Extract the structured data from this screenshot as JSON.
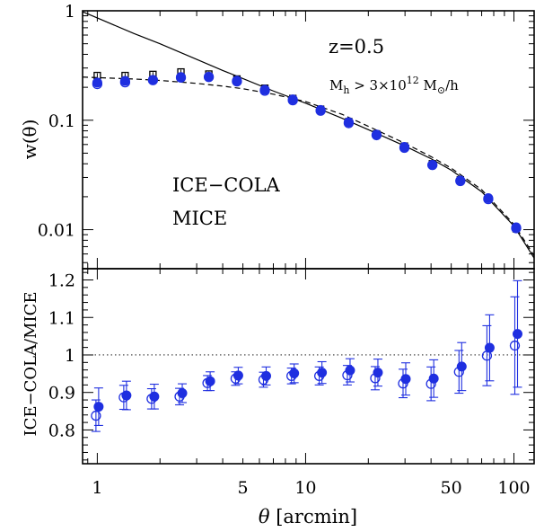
{
  "chart_data": [
    {
      "type": "scatter",
      "panel": "top",
      "xscale": "log",
      "yscale": "log",
      "xlim": [
        0.85,
        125
      ],
      "ylim": [
        0.0044,
        1.0
      ],
      "ylabel": "w(θ)",
      "xlabel": "",
      "yticks": [
        {
          "value": 1,
          "label": "1"
        },
        {
          "value": 0.1,
          "label": "0.1"
        },
        {
          "value": 0.01,
          "label": "0.01"
        }
      ],
      "annotations": {
        "redshift": "z=0.5",
        "mass_cut_prefix": "M",
        "mass_cut_sub": "h",
        "mass_cut_mid": " > 3×10",
        "mass_cut_exp": "12",
        "mass_cut_unit": " M",
        "mass_cut_sun": "⊙",
        "mass_cut_tail": "/h"
      },
      "legend": [
        {
          "label": "ICE−COLA",
          "color": "#1f2fe0"
        },
        {
          "label": "MICE",
          "color": "#000000"
        }
      ],
      "x": [
        1.0,
        1.36,
        1.85,
        2.52,
        3.43,
        4.68,
        6.37,
        8.68,
        11.8,
        16.1,
        21.9,
        29.8,
        40.6,
        55.3,
        75.3,
        102.5
      ],
      "series": [
        {
          "name": "MICE",
          "marker": "open-square",
          "color": "#000000",
          "values": [
            0.256,
            0.256,
            0.262,
            0.276,
            0.264,
            0.238,
            0.196,
            0.158,
            0.126,
            0.097,
            0.075,
            0.058,
            0.04,
            0.0285,
            0.0192,
            0.0102
          ]
        },
        {
          "name": "ICE−COLA",
          "marker": "open-circle",
          "color": "#1f2fe0",
          "values": [
            0.214,
            0.222,
            0.232,
            0.245,
            0.248,
            0.226,
            0.186,
            0.152,
            0.122,
            0.094,
            0.073,
            0.056,
            0.039,
            0.0278,
            0.019,
            0.0103
          ]
        },
        {
          "name": "",
          "marker": "filled-circle",
          "color": "#1f2fe0",
          "values": [
            0.221,
            0.229,
            0.234,
            0.248,
            0.25,
            0.23,
            0.19,
            0.155,
            0.124,
            0.096,
            0.074,
            0.057,
            0.039,
            0.0281,
            0.0194,
            0.0105
          ]
        }
      ],
      "curves": [
        {
          "style": "solid",
          "color": "#000000",
          "x": [
            0.85,
            1.0,
            1.5,
            2.0,
            3.0,
            4.0,
            5.0,
            7.0,
            10.0,
            15.0,
            20.0,
            30.0,
            40.0,
            50.0,
            70.0,
            100.0,
            125.0
          ],
          "y": [
            0.98,
            0.86,
            0.62,
            0.5,
            0.36,
            0.285,
            0.24,
            0.185,
            0.143,
            0.104,
            0.082,
            0.058,
            0.0445,
            0.035,
            0.0222,
            0.0108,
            0.0055
          ]
        },
        {
          "style": "dashed",
          "color": "#000000",
          "x": [
            0.85,
            1.0,
            1.5,
            2.0,
            3.0,
            4.0,
            5.0,
            7.0,
            10.0,
            15.0,
            20.0,
            30.0,
            40.0,
            50.0,
            70.0,
            100.0,
            125.0
          ],
          "y": [
            0.248,
            0.245,
            0.238,
            0.231,
            0.217,
            0.205,
            0.194,
            0.173,
            0.148,
            0.113,
            0.088,
            0.0615,
            0.0465,
            0.0365,
            0.0232,
            0.0112,
            0.0058
          ]
        }
      ]
    },
    {
      "type": "scatter",
      "panel": "bottom",
      "xscale": "log",
      "xlim": [
        0.85,
        125
      ],
      "ylim": [
        0.71,
        1.23
      ],
      "xlabel_symbol": "θ",
      "xlabel_unit": " [arcmin]",
      "ylabel": "ICE−COLA/MICE",
      "reference_line": 1.0,
      "xticks": [
        {
          "value": 1,
          "label": "1"
        },
        {
          "value": 5,
          "label": "5"
        },
        {
          "value": 10,
          "label": "10"
        },
        {
          "value": 50,
          "label": "50"
        },
        {
          "value": 100,
          "label": "100"
        }
      ],
      "yticks": [
        {
          "value": 0.8,
          "label": "0.8"
        },
        {
          "value": 0.9,
          "label": "0.9"
        },
        {
          "value": 1.0,
          "label": "1"
        },
        {
          "value": 1.1,
          "label": "1.1"
        },
        {
          "value": 1.2,
          "label": "1.2"
        }
      ],
      "x": [
        1.0,
        1.36,
        1.85,
        2.52,
        3.43,
        4.68,
        6.37,
        8.68,
        11.8,
        16.1,
        21.9,
        29.8,
        40.6,
        55.3,
        75.3,
        102.5
      ],
      "series": [
        {
          "name": "",
          "marker": "filled-circle",
          "color": "#1f2fe0",
          "values": [
            0.862,
            0.892,
            0.889,
            0.898,
            0.93,
            0.945,
            0.944,
            0.951,
            0.953,
            0.959,
            0.953,
            0.936,
            0.937,
            0.969,
            1.019,
            1.056
          ],
          "err": [
            0.05,
            0.038,
            0.033,
            0.025,
            0.025,
            0.022,
            0.024,
            0.025,
            0.029,
            0.031,
            0.036,
            0.043,
            0.05,
            0.064,
            0.088,
            0.142
          ]
        },
        {
          "name": "",
          "marker": "open-circle",
          "color": "#1f2fe0",
          "values": [
            0.838,
            0.887,
            0.883,
            0.889,
            0.925,
            0.937,
            0.934,
            0.944,
            0.944,
            0.946,
            0.938,
            0.924,
            0.923,
            0.955,
            0.998,
            1.025
          ],
          "err": [
            0.042,
            0.032,
            0.027,
            0.022,
            0.02,
            0.018,
            0.02,
            0.021,
            0.024,
            0.026,
            0.031,
            0.038,
            0.045,
            0.057,
            0.08,
            0.13
          ]
        }
      ]
    }
  ]
}
